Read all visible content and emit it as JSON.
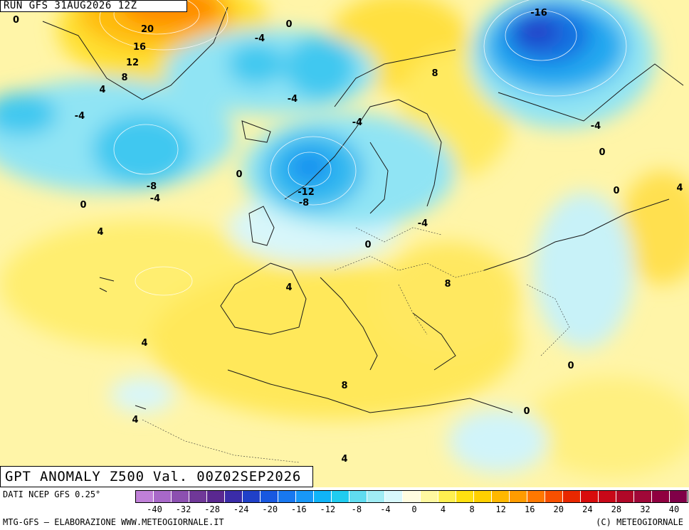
{
  "run_label": "RUN GFS 31AUG2026 12Z",
  "title": "GPT ANOMALY Z500 Val. 00Z02SEP2026",
  "source": "DATI NCEP GFS 0.25°",
  "footer_left": "MTG-GFS — ELABORAZIONE WWW.METEOGIORNALE.IT",
  "footer_right": "(C) METEOGIORNALE",
  "colorbar": {
    "colors": [
      "#c080d8",
      "#a868c8",
      "#8c50b0",
      "#703898",
      "#5a2890",
      "#3a2ca8",
      "#2040c8",
      "#1858e0",
      "#1878f0",
      "#1898f8",
      "#10b4f8",
      "#20ccf0",
      "#60dcf0",
      "#a0ecf4",
      "#d8f8fc",
      "#fffce0",
      "#fff8a0",
      "#fff050",
      "#ffe010",
      "#ffd000",
      "#ffb800",
      "#ff9c00",
      "#ff7800",
      "#f85000",
      "#e82800",
      "#d80c0c",
      "#c80818",
      "#b00828",
      "#a00838",
      "#900040",
      "#800048"
    ],
    "tick_labels": [
      "-40",
      "-32",
      "-28",
      "-24",
      "-20",
      "-16",
      "-12",
      "-8",
      "-4",
      "0",
      "4",
      "8",
      "12",
      "16",
      "20",
      "24",
      "28",
      "32",
      "40"
    ]
  },
  "contour_labels": [
    "0",
    "20",
    "16",
    "12",
    "8",
    "4",
    "-4",
    "0",
    "-4",
    "-4",
    "-4",
    "8",
    "-16",
    "-4",
    "0",
    "0",
    "-8",
    "-4",
    "0",
    "-12",
    "-8",
    "-4",
    "0",
    "4",
    "4",
    "4",
    "8",
    "0",
    "4",
    "8",
    "0",
    "0",
    "4",
    "4"
  ]
}
